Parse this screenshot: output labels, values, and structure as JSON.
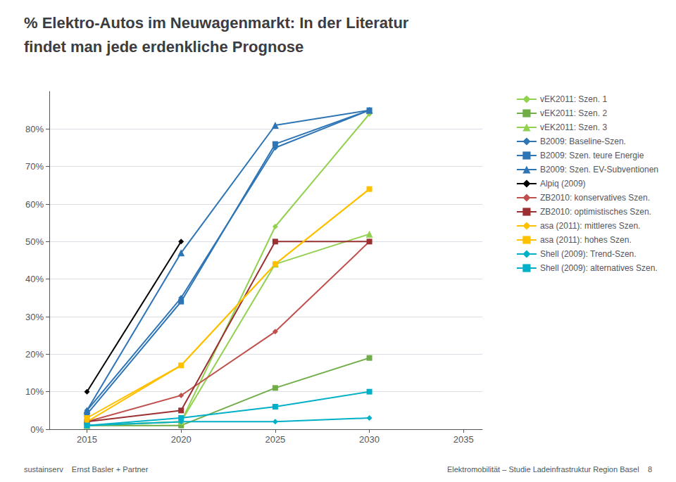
{
  "chart_data": {
    "type": "line",
    "title": "% Elektro-Autos im Neuwagenmarkt: In der Literatur",
    "subtitle": "findet man jede erdenkliche Prognose",
    "annotations": [
      "sustainserv    Ernst Basler + Partner",
      "Elektromobilität – Studie Ladeinfrastruktur Region Basel    8"
    ],
    "xlim": [
      2013,
      2036
    ],
    "xticks": [
      2015,
      2020,
      2025,
      2030,
      2035
    ],
    "ylim": [
      0,
      0.9
    ],
    "yticks": [
      {
        "value": 0.0,
        "label": "0%"
      },
      {
        "value": 0.1,
        "label": "10%"
      },
      {
        "value": 0.2,
        "label": "20%"
      },
      {
        "value": 0.3,
        "label": "30%"
      },
      {
        "value": 0.4,
        "label": "40%"
      },
      {
        "value": 0.5,
        "label": "50%"
      },
      {
        "value": 0.6,
        "label": "60%"
      },
      {
        "value": 0.7,
        "label": "70%"
      },
      {
        "value": 0.8,
        "label": "80%"
      }
    ],
    "grid": true,
    "legend": "right",
    "series": [
      {
        "name": "vEK2011: Szen. 1",
        "color": "#92d050",
        "marker": "diamond",
        "x": [
          2015,
          2020,
          2025,
          2030
        ],
        "values": [
          0.01,
          0.02,
          0.54,
          0.84
        ]
      },
      {
        "name": "vEK2011: Szen. 2",
        "color": "#70ad47",
        "marker": "square",
        "x": [
          2015,
          2020,
          2025,
          2030
        ],
        "values": [
          0.01,
          0.01,
          0.11,
          0.19
        ]
      },
      {
        "name": "vEK2011: Szen. 3",
        "color": "#92d050",
        "marker": "triangle",
        "x": [
          2015,
          2020,
          2025,
          2030
        ],
        "values": [
          0.01,
          0.02,
          0.44,
          0.52
        ]
      },
      {
        "name": "B2009: Baseline-Szen.",
        "color": "#2e75b6",
        "marker": "diamond",
        "x": [
          2015,
          2020,
          2025,
          2030
        ],
        "values": [
          0.05,
          0.35,
          0.75,
          0.85
        ]
      },
      {
        "name": "B2009: Szen. teure Energie",
        "color": "#2e75b6",
        "marker": "square",
        "x": [
          2015,
          2020,
          2025,
          2030
        ],
        "values": [
          0.04,
          0.34,
          0.76,
          0.85
        ]
      },
      {
        "name": "B2009: Szen. EV-Subventionen",
        "color": "#2e75b6",
        "marker": "triangle",
        "x": [
          2015,
          2020,
          2025,
          2030
        ],
        "values": [
          0.05,
          0.47,
          0.81,
          0.85
        ]
      },
      {
        "name": "Alpiq (2009)",
        "color": "#000000",
        "marker": "diamond",
        "x": [
          2015,
          2020
        ],
        "values": [
          0.1,
          0.5
        ]
      },
      {
        "name": "ZB2010: konservatives Szen.",
        "color": "#c0504d",
        "marker": "diamond",
        "x": [
          2015,
          2020,
          2025,
          2030
        ],
        "values": [
          0.02,
          0.09,
          0.26,
          0.5
        ]
      },
      {
        "name": "ZB2010: optimistisches Szen.",
        "color": "#9b3033",
        "marker": "square",
        "x": [
          2015,
          2020,
          2025,
          2030
        ],
        "values": [
          0.02,
          0.05,
          0.5,
          0.5
        ]
      },
      {
        "name": "asa (2011): mittleres Szen.",
        "color": "#ffc000",
        "marker": "diamond",
        "x": [
          2015,
          2020,
          2025,
          2030
        ],
        "values": [
          0.02,
          0.17,
          0.44,
          0.64
        ]
      },
      {
        "name": "asa (2011): hohes Szen.",
        "color": "#ffc000",
        "marker": "square",
        "x": [
          2015,
          2020,
          2025,
          2030
        ],
        "values": [
          0.03,
          0.17,
          0.44,
          0.64
        ]
      },
      {
        "name": "Shell (2009): Trend-Szen.",
        "color": "#00b0c8",
        "marker": "diamond",
        "x": [
          2015,
          2020,
          2025,
          2030
        ],
        "values": [
          0.01,
          0.02,
          0.02,
          0.03
        ]
      },
      {
        "name": "Shell (2009): alternatives Szen.",
        "color": "#00b0c8",
        "marker": "square",
        "x": [
          2015,
          2020,
          2025,
          2030
        ],
        "values": [
          0.01,
          0.03,
          0.06,
          0.1
        ]
      }
    ]
  }
}
